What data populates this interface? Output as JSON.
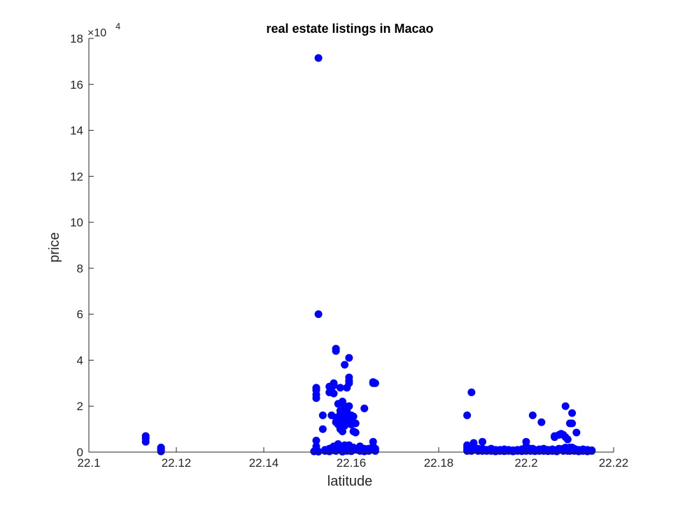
{
  "chart_data": {
    "type": "scatter",
    "title": "real estate listings in Macao",
    "xlabel": "latitude",
    "ylabel": "price",
    "xlim": [
      22.1,
      22.22
    ],
    "ylim": [
      0,
      180000
    ],
    "x_ticks": [
      22.1,
      22.12,
      22.14,
      22.16,
      22.18,
      22.2,
      22.22
    ],
    "x_tick_labels": [
      "22.1",
      "22.12",
      "22.14",
      "22.16",
      "22.18",
      "22.2",
      "22.22"
    ],
    "y_ticks": [
      0,
      20000,
      40000,
      60000,
      80000,
      100000,
      120000,
      140000,
      160000,
      180000
    ],
    "y_tick_labels": [
      "0",
      "2",
      "4",
      "6",
      "8",
      "10",
      "12",
      "14",
      "16",
      "18"
    ],
    "y_exponent": {
      "base": "×10",
      "power": "4"
    },
    "grid": false,
    "marker_color": "#0000ff",
    "series": [
      {
        "name": "",
        "points": [
          [
            22.113,
            7000
          ],
          [
            22.113,
            6000
          ],
          [
            22.113,
            4500
          ],
          [
            22.1165,
            2000
          ],
          [
            22.1165,
            1500
          ],
          [
            22.1165,
            800
          ],
          [
            22.1165,
            300
          ],
          [
            22.1525,
            171500
          ],
          [
            22.1525,
            60000
          ],
          [
            22.152,
            28000
          ],
          [
            22.152,
            27000
          ],
          [
            22.152,
            25000
          ],
          [
            22.152,
            23500
          ],
          [
            22.152,
            5000
          ],
          [
            22.152,
            2500
          ],
          [
            22.152,
            1000
          ],
          [
            22.1515,
            300
          ],
          [
            22.1525,
            200
          ],
          [
            22.1535,
            16000
          ],
          [
            22.1535,
            10000
          ],
          [
            22.154,
            1000
          ],
          [
            22.154,
            500
          ],
          [
            22.155,
            28500
          ],
          [
            22.155,
            26000
          ],
          [
            22.155,
            1500
          ],
          [
            22.155,
            300
          ],
          [
            22.1555,
            28000
          ],
          [
            22.1555,
            16000
          ],
          [
            22.1555,
            1800
          ],
          [
            22.156,
            30000
          ],
          [
            22.156,
            29000
          ],
          [
            22.156,
            25500
          ],
          [
            22.156,
            2500
          ],
          [
            22.156,
            800
          ],
          [
            22.1565,
            45000
          ],
          [
            22.1565,
            44000
          ],
          [
            22.1565,
            15000
          ],
          [
            22.1565,
            13000
          ],
          [
            22.1565,
            500
          ],
          [
            22.157,
            21000
          ],
          [
            22.157,
            14000
          ],
          [
            22.157,
            12000
          ],
          [
            22.157,
            3500
          ],
          [
            22.157,
            1500
          ],
          [
            22.1575,
            28000
          ],
          [
            22.1575,
            18000
          ],
          [
            22.1575,
            16500
          ],
          [
            22.1575,
            10000
          ],
          [
            22.1575,
            1000
          ],
          [
            22.158,
            22000
          ],
          [
            22.158,
            15500
          ],
          [
            22.158,
            12500
          ],
          [
            22.158,
            9000
          ],
          [
            22.158,
            2000
          ],
          [
            22.158,
            200
          ],
          [
            22.1585,
            38000
          ],
          [
            22.1585,
            20000
          ],
          [
            22.1585,
            14000
          ],
          [
            22.1585,
            11500
          ],
          [
            22.1585,
            3000
          ],
          [
            22.159,
            28000
          ],
          [
            22.159,
            18000
          ],
          [
            22.159,
            16000
          ],
          [
            22.159,
            13000
          ],
          [
            22.159,
            2500
          ],
          [
            22.159,
            500
          ],
          [
            22.1595,
            41000
          ],
          [
            22.1595,
            32500
          ],
          [
            22.1595,
            31000
          ],
          [
            22.1595,
            30000
          ],
          [
            22.1595,
            20000
          ],
          [
            22.1595,
            15000
          ],
          [
            22.1595,
            3000
          ],
          [
            22.16,
            16000
          ],
          [
            22.16,
            14000
          ],
          [
            22.16,
            12000
          ],
          [
            22.16,
            1500
          ],
          [
            22.16,
            400
          ],
          [
            22.1605,
            15500
          ],
          [
            22.1605,
            9000
          ],
          [
            22.1605,
            2000
          ],
          [
            22.161,
            12500
          ],
          [
            22.161,
            8500
          ],
          [
            22.161,
            1000
          ],
          [
            22.162,
            2500
          ],
          [
            22.162,
            500
          ],
          [
            22.163,
            19000
          ],
          [
            22.163,
            1500
          ],
          [
            22.163,
            300
          ],
          [
            22.164,
            1500
          ],
          [
            22.164,
            500
          ],
          [
            22.165,
            30500
          ],
          [
            22.165,
            30000
          ],
          [
            22.165,
            4500
          ],
          [
            22.165,
            2500
          ],
          [
            22.165,
            1000
          ],
          [
            22.1655,
            30000
          ],
          [
            22.1655,
            1500
          ],
          [
            22.1655,
            500
          ],
          [
            22.1865,
            16000
          ],
          [
            22.1865,
            3000
          ],
          [
            22.1865,
            2000
          ],
          [
            22.1865,
            1000
          ],
          [
            22.1865,
            500
          ],
          [
            22.1875,
            26000
          ],
          [
            22.1875,
            1500
          ],
          [
            22.1875,
            500
          ],
          [
            22.188,
            4000
          ],
          [
            22.188,
            2000
          ],
          [
            22.188,
            1000
          ],
          [
            22.189,
            1500
          ],
          [
            22.189,
            500
          ],
          [
            22.19,
            4500
          ],
          [
            22.19,
            1500
          ],
          [
            22.19,
            500
          ],
          [
            22.191,
            1000
          ],
          [
            22.191,
            500
          ],
          [
            22.192,
            1500
          ],
          [
            22.192,
            500
          ],
          [
            22.193,
            1000
          ],
          [
            22.193,
            300
          ],
          [
            22.194,
            1000
          ],
          [
            22.194,
            500
          ],
          [
            22.195,
            1200
          ],
          [
            22.195,
            400
          ],
          [
            22.196,
            1000
          ],
          [
            22.196,
            500
          ],
          [
            22.197,
            800
          ],
          [
            22.197,
            300
          ],
          [
            22.198,
            1000
          ],
          [
            22.198,
            500
          ],
          [
            22.199,
            1200
          ],
          [
            22.199,
            400
          ],
          [
            22.2,
            4500
          ],
          [
            22.2,
            2500
          ],
          [
            22.2,
            1500
          ],
          [
            22.2,
            500
          ],
          [
            22.201,
            1500
          ],
          [
            22.201,
            500
          ],
          [
            22.2015,
            16000
          ],
          [
            22.2015,
            1500
          ],
          [
            22.202,
            1000
          ],
          [
            22.202,
            400
          ],
          [
            22.203,
            1200
          ],
          [
            22.203,
            500
          ],
          [
            22.2035,
            13000
          ],
          [
            22.204,
            1500
          ],
          [
            22.204,
            500
          ],
          [
            22.205,
            1000
          ],
          [
            22.205,
            400
          ],
          [
            22.206,
            1200
          ],
          [
            22.206,
            500
          ],
          [
            22.2065,
            7000
          ],
          [
            22.2065,
            6500
          ],
          [
            22.207,
            1000
          ],
          [
            22.207,
            300
          ],
          [
            22.2075,
            7500
          ],
          [
            22.2075,
            1500
          ],
          [
            22.208,
            8000
          ],
          [
            22.208,
            1000
          ],
          [
            22.2085,
            7500
          ],
          [
            22.2085,
            1500
          ],
          [
            22.2085,
            500
          ],
          [
            22.209,
            20000
          ],
          [
            22.209,
            6500
          ],
          [
            22.209,
            2000
          ],
          [
            22.209,
            800
          ],
          [
            22.2095,
            5500
          ],
          [
            22.2095,
            1500
          ],
          [
            22.2095,
            500
          ],
          [
            22.21,
            12500
          ],
          [
            22.21,
            2000
          ],
          [
            22.21,
            500
          ],
          [
            22.2105,
            17000
          ],
          [
            22.2105,
            12500
          ],
          [
            22.2105,
            2000
          ],
          [
            22.211,
            1500
          ],
          [
            22.211,
            500
          ],
          [
            22.2115,
            8500
          ],
          [
            22.2115,
            1000
          ],
          [
            22.212,
            1000
          ],
          [
            22.212,
            300
          ],
          [
            22.213,
            1200
          ],
          [
            22.213,
            500
          ],
          [
            22.214,
            1000
          ],
          [
            22.214,
            300
          ],
          [
            22.215,
            800
          ],
          [
            22.215,
            500
          ]
        ]
      }
    ]
  }
}
